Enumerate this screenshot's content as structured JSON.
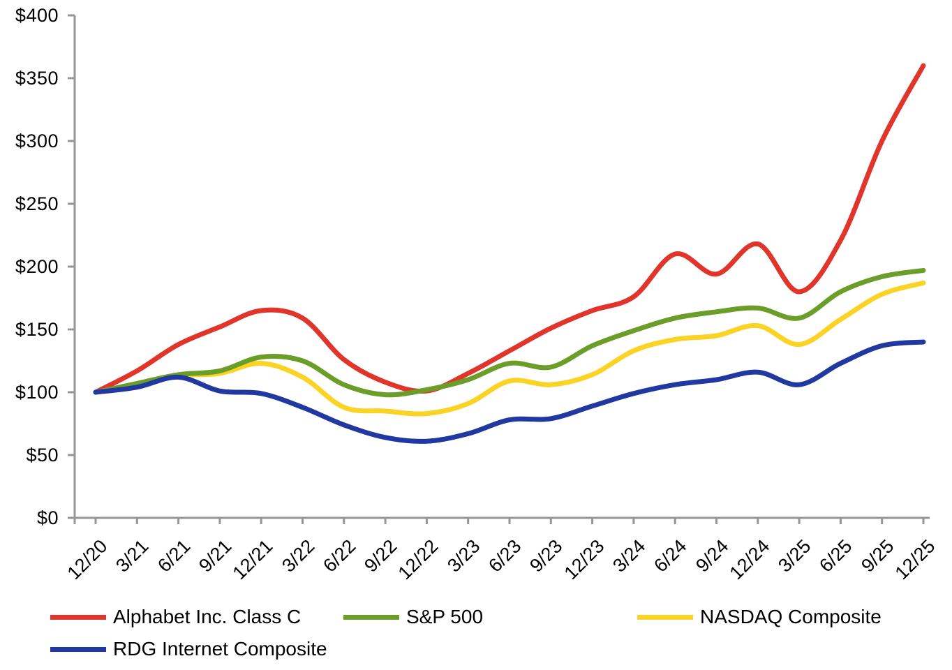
{
  "chart_data": {
    "type": "line",
    "smoothed": true,
    "title": "",
    "xlabel": "",
    "ylabel": "",
    "grid": false,
    "legend_position": "bottom",
    "axis_color": "#969696",
    "text_color": "#000000",
    "line_width": 7,
    "x_tick_labels": [
      "12/20",
      "3/21",
      "6/21",
      "9/21",
      "12/21",
      "3/22",
      "6/22",
      "9/22",
      "12/22",
      "3/23",
      "6/23",
      "9/23",
      "12/23",
      "3/24",
      "6/24",
      "9/24",
      "12/24",
      "3/25",
      "6/25",
      "9/25",
      "12/25"
    ],
    "y_axis": {
      "min": 0,
      "max": 400,
      "step": 50,
      "prefix": "$",
      "tick_labels": [
        "$0",
        "$50",
        "$100",
        "$150",
        "$200",
        "$250",
        "$300",
        "$350",
        "$400"
      ]
    },
    "series": [
      {
        "name": "Alphabet Inc. Class C",
        "color": "#e1342b",
        "values": [
          100,
          117,
          138,
          152,
          165,
          159,
          126,
          108,
          101,
          115,
          133,
          151,
          165,
          176,
          210,
          194,
          218,
          180,
          221,
          300,
          360
        ]
      },
      {
        "name": "S&P 500",
        "color": "#6b9e28",
        "values": [
          100,
          107,
          114,
          117,
          128,
          125,
          106,
          98,
          102,
          110,
          123,
          120,
          137,
          149,
          159,
          164,
          167,
          159,
          180,
          192,
          197
        ]
      },
      {
        "name": "NASDAQ Composite",
        "color": "#fbd324",
        "values": [
          100,
          105,
          113,
          115,
          123,
          112,
          88,
          85,
          83,
          91,
          109,
          106,
          114,
          133,
          142,
          145,
          153,
          138,
          158,
          178,
          187
        ]
      },
      {
        "name": "RDG Internet Composite",
        "color": "#2038a0",
        "values": [
          100,
          104,
          112,
          101,
          99,
          88,
          74,
          64,
          61,
          67,
          78,
          79,
          89,
          99,
          106,
          110,
          116,
          106,
          123,
          137,
          140
        ]
      }
    ]
  }
}
